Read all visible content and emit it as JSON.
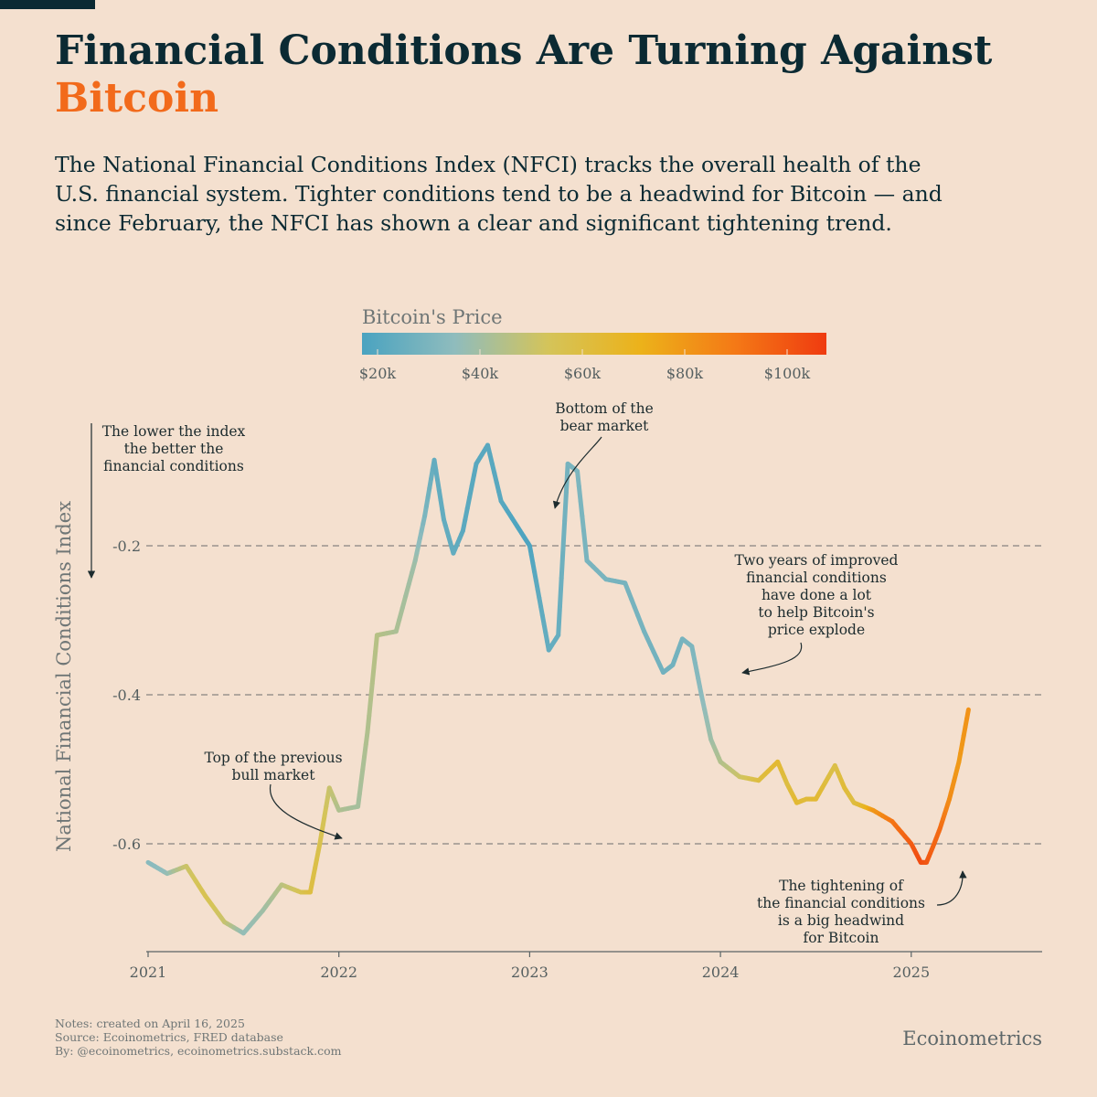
{
  "title_line1": "Financial Conditions Are Turning Against",
  "title_line2": "Bitcoin",
  "description": "The National Financial Conditions Index (NFCI) tracks the overall health of the U.S. financial system. Tighter conditions tend to be a headwind for Bitcoin — and since February, the NFCI has shown a clear and significant tightening trend.",
  "colors": {
    "background": "#f4e0cf",
    "title": "#0b2a33",
    "accent": "#f26a1b"
  },
  "chart_data": {
    "type": "line",
    "ylabel": "National Financial Conditions Index",
    "xlabel": "",
    "xlim": [
      2020.8,
      2025.5
    ],
    "ylim": [
      -0.74,
      -0.07
    ],
    "x_ticks": [
      "2021",
      "2022",
      "2023",
      "2024",
      "2025"
    ],
    "y_ticks": [
      -0.2,
      -0.4,
      -0.6
    ],
    "y_tick_labels": [
      "-0.2",
      "-0.4",
      "-0.6"
    ],
    "grid": "horizontal dashed",
    "color_scale": {
      "title": "Bitcoin's Price",
      "ticks": [
        "$20k",
        "$40k",
        "$60k",
        "$80k",
        "$100k"
      ],
      "stops": [
        "#4aa3c0",
        "#8fbcbd",
        "#d4c45a",
        "#ecb21a",
        "#f47a16",
        "#ef3b10"
      ]
    },
    "series": [
      {
        "x": [
          2021.0,
          2021.1,
          2021.2,
          2021.3,
          2021.4,
          2021.5,
          2021.6,
          2021.7,
          2021.8,
          2021.85,
          2021.9,
          2021.95,
          2022.0,
          2022.1,
          2022.15,
          2022.2,
          2022.3,
          2022.4,
          2022.45,
          2022.5,
          2022.55,
          2022.6,
          2022.65,
          2022.72,
          2022.78,
          2022.85,
          2022.9,
          2022.95,
          2023.0,
          2023.05,
          2023.1,
          2023.15,
          2023.2,
          2023.25,
          2023.3,
          2023.4,
          2023.5,
          2023.6,
          2023.7,
          2023.75,
          2023.8,
          2023.85,
          2023.9,
          2023.95,
          2024.0,
          2024.1,
          2024.2,
          2024.3,
          2024.35,
          2024.4,
          2024.45,
          2024.5,
          2024.6,
          2024.65,
          2024.7,
          2024.75,
          2024.8,
          2024.9,
          2025.0,
          2025.05,
          2025.08,
          2025.12,
          2025.15,
          2025.2,
          2025.25,
          2025.3
        ],
        "nfci": [
          -0.625,
          -0.64,
          -0.63,
          -0.67,
          -0.705,
          -0.72,
          -0.69,
          -0.655,
          -0.665,
          -0.665,
          -0.6,
          -0.525,
          -0.555,
          -0.55,
          -0.45,
          -0.32,
          -0.315,
          -0.22,
          -0.16,
          -0.085,
          -0.165,
          -0.21,
          -0.18,
          -0.09,
          -0.065,
          -0.14,
          -0.16,
          -0.18,
          -0.2,
          -0.27,
          -0.34,
          -0.32,
          -0.09,
          -0.1,
          -0.22,
          -0.245,
          -0.25,
          -0.315,
          -0.37,
          -0.36,
          -0.325,
          -0.335,
          -0.4,
          -0.46,
          -0.49,
          -0.51,
          -0.515,
          -0.49,
          -0.52,
          -0.545,
          -0.54,
          -0.54,
          -0.495,
          -0.525,
          -0.545,
          -0.55,
          -0.555,
          -0.57,
          -0.6,
          -0.625,
          -0.625,
          -0.6,
          -0.58,
          -0.54,
          -0.49,
          -0.42
        ],
        "btc_price_k": [
          32,
          35,
          50,
          56,
          50,
          35,
          38,
          45,
          55,
          60,
          57,
          50,
          43,
          40,
          43,
          45,
          42,
          38,
          29,
          22,
          22,
          22,
          20,
          19,
          19,
          19,
          17,
          16,
          16,
          21,
          22,
          23,
          27,
          29,
          28,
          28,
          27,
          27,
          26,
          26,
          27,
          29,
          33,
          38,
          43,
          50,
          60,
          65,
          60,
          65,
          62,
          65,
          58,
          63,
          60,
          66,
          80,
          92,
          100,
          105,
          102,
          97,
          96,
          85,
          80,
          83
        ]
      }
    ],
    "annotations": [
      {
        "lines": [
          "The lower the index",
          "the better the",
          "financial conditions"
        ]
      },
      {
        "lines": [
          "Bottom of the",
          "bear market"
        ]
      },
      {
        "lines": [
          "Top of the previous",
          "bull market"
        ]
      },
      {
        "lines": [
          "Two years of improved",
          "financial conditions",
          "have done a lot",
          "to help Bitcoin's",
          "price explode"
        ]
      },
      {
        "lines": [
          "The tightening of",
          "the financial conditions",
          "is a big headwind",
          "for Bitcoin"
        ]
      }
    ]
  },
  "notes": [
    "Notes: created on April 16, 2025",
    "Source: Ecoinometrics, FRED database",
    "By: @ecoinometrics, ecoinometrics.substack.com"
  ],
  "brand": "Ecoinometrics"
}
